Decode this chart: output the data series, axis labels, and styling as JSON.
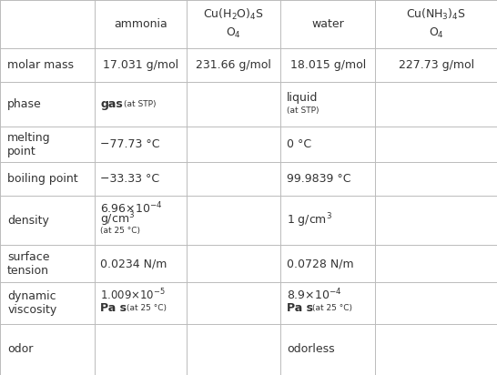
{
  "figsize": [
    5.46,
    4.12
  ],
  "dpi": 100,
  "background_color": "#ffffff",
  "line_color": "#bbbbbb",
  "text_color": "#333333",
  "font_size": 9.0,
  "small_font_size": 6.5,
  "col_bounds": [
    0.0,
    0.19,
    0.375,
    0.565,
    0.755,
    1.0
  ],
  "row_tops": [
    1.0,
    0.872,
    0.782,
    0.662,
    0.567,
    0.477,
    0.347,
    0.247,
    0.137,
    0.0
  ]
}
